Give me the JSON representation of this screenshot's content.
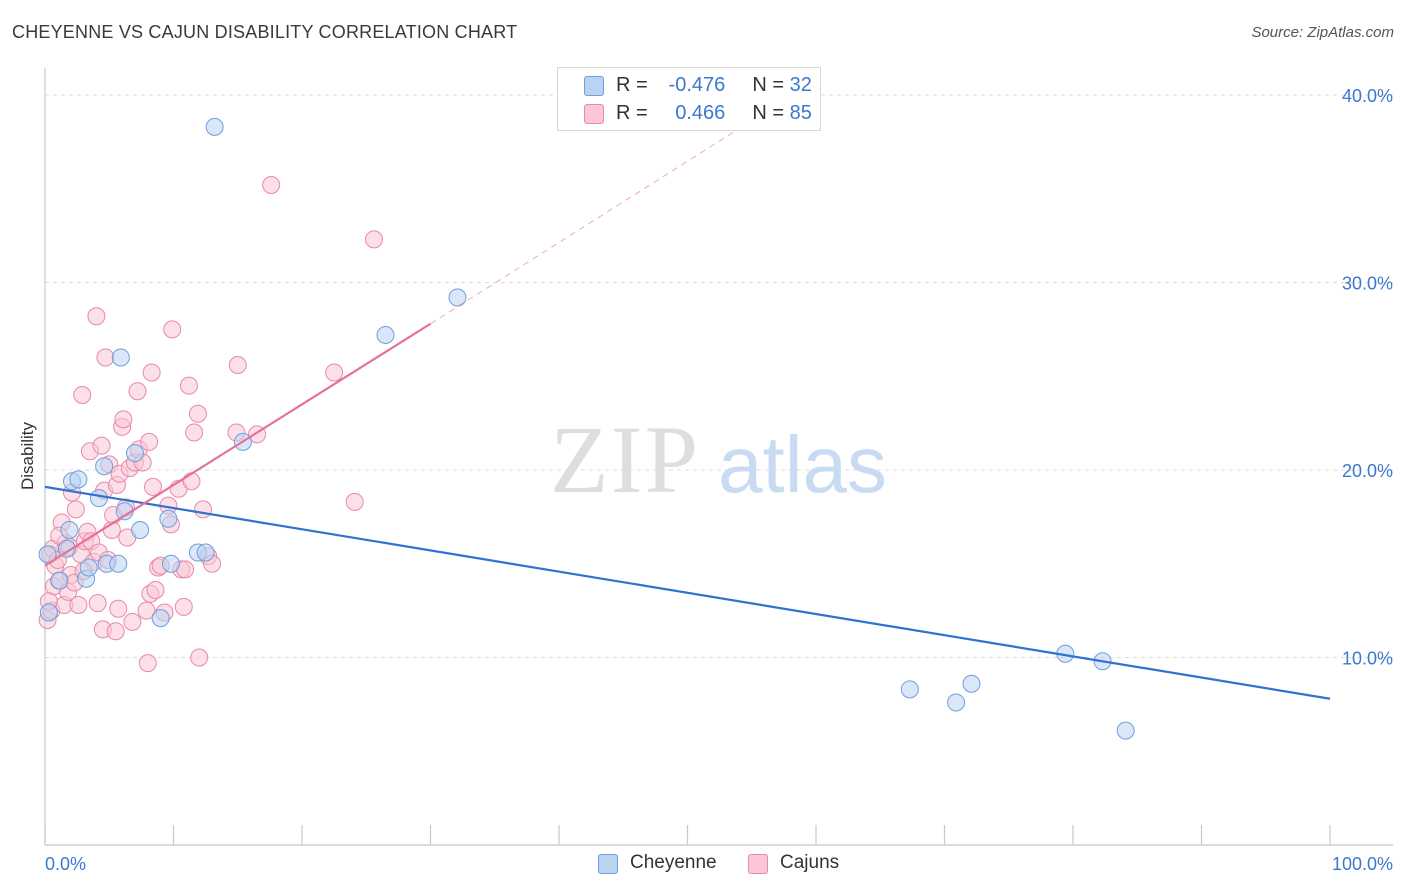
{
  "title": "CHEYENNE VS CAJUN DISABILITY CORRELATION CHART",
  "source": "Source: ZipAtlas.com",
  "watermark": {
    "zip": "ZIP",
    "atlas": "atlas"
  },
  "legend": {
    "rows": [
      {
        "r_label": "R =",
        "r_value": "-0.476",
        "n_label": "N =",
        "n_value": "32"
      },
      {
        "r_label": "R =",
        "r_value": "0.466",
        "n_label": "N =",
        "n_value": "85"
      }
    ]
  },
  "colors": {
    "cheyenne_fill": "#b9d3f3",
    "cheyenne_stroke": "#6f9fdc",
    "cheyenne_line": "#2f72d0",
    "cajun_fill": "#f9c7d6",
    "cajun_stroke": "#e889a8",
    "cajun_line": "#e5709a",
    "tick_label": "#3b78d0",
    "grid": "#dcdcdc"
  },
  "chart_data": {
    "type": "scatter",
    "title": "CHEYENNE VS CAJUN DISABILITY CORRELATION CHART",
    "xlabel": "",
    "ylabel": "Disability",
    "xlim": [
      0,
      100
    ],
    "ylim": [
      0,
      40.8
    ],
    "x_tick_labels": [
      "0.0%",
      "100.0%"
    ],
    "y_ticks": [
      10,
      20,
      30,
      40
    ],
    "y_tick_labels": [
      "10.0%",
      "20.0%",
      "30.0%",
      "40.0%"
    ],
    "legend_position": "bottom-center",
    "series": [
      {
        "name": "Cheyenne",
        "r": -0.476,
        "n": 32,
        "trend": {
          "x0": 0,
          "y0": 19.1,
          "x1": 100,
          "y1": 7.8
        },
        "points": [
          {
            "x": 0.2,
            "y": 15.5
          },
          {
            "x": 0.3,
            "y": 12.4
          },
          {
            "x": 1.1,
            "y": 14.1
          },
          {
            "x": 1.7,
            "y": 15.8
          },
          {
            "x": 1.9,
            "y": 16.8
          },
          {
            "x": 2.1,
            "y": 19.4
          },
          {
            "x": 2.6,
            "y": 19.5
          },
          {
            "x": 3.2,
            "y": 14.2
          },
          {
            "x": 3.4,
            "y": 14.8
          },
          {
            "x": 4.2,
            "y": 18.5
          },
          {
            "x": 4.6,
            "y": 20.2
          },
          {
            "x": 4.8,
            "y": 15.0
          },
          {
            "x": 5.7,
            "y": 15.0
          },
          {
            "x": 5.9,
            "y": 26.0
          },
          {
            "x": 6.2,
            "y": 17.8
          },
          {
            "x": 7.0,
            "y": 20.9
          },
          {
            "x": 7.4,
            "y": 16.8
          },
          {
            "x": 9.0,
            "y": 12.1
          },
          {
            "x": 9.6,
            "y": 17.4
          },
          {
            "x": 9.8,
            "y": 15.0
          },
          {
            "x": 11.9,
            "y": 15.6
          },
          {
            "x": 12.5,
            "y": 15.6
          },
          {
            "x": 13.2,
            "y": 38.3
          },
          {
            "x": 15.4,
            "y": 21.5
          },
          {
            "x": 26.5,
            "y": 27.2
          },
          {
            "x": 32.1,
            "y": 29.2
          },
          {
            "x": 67.3,
            "y": 8.3
          },
          {
            "x": 70.9,
            "y": 7.6
          },
          {
            "x": 72.1,
            "y": 8.6
          },
          {
            "x": 79.4,
            "y": 10.2
          },
          {
            "x": 82.3,
            "y": 9.8
          },
          {
            "x": 84.1,
            "y": 6.1
          }
        ]
      },
      {
        "name": "Cajuns",
        "r": 0.466,
        "n": 85,
        "trend": {
          "x0": 0,
          "y0": 14.9,
          "x1": 30,
          "y1": 27.8,
          "dash_to_x": 54,
          "dash_to_y": 38.2
        },
        "points": [
          {
            "x": 0.2,
            "y": 12.0
          },
          {
            "x": 0.4,
            "y": 15.5
          },
          {
            "x": 0.5,
            "y": 12.5
          },
          {
            "x": 0.6,
            "y": 15.8
          },
          {
            "x": 0.7,
            "y": 13.8
          },
          {
            "x": 0.8,
            "y": 14.9
          },
          {
            "x": 1.0,
            "y": 15.2
          },
          {
            "x": 1.2,
            "y": 14.1
          },
          {
            "x": 1.3,
            "y": 17.2
          },
          {
            "x": 1.5,
            "y": 12.8
          },
          {
            "x": 1.6,
            "y": 16.1
          },
          {
            "x": 1.8,
            "y": 13.5
          },
          {
            "x": 1.9,
            "y": 15.9
          },
          {
            "x": 2.0,
            "y": 14.4
          },
          {
            "x": 2.1,
            "y": 18.8
          },
          {
            "x": 2.3,
            "y": 14.0
          },
          {
            "x": 2.4,
            "y": 17.9
          },
          {
            "x": 2.6,
            "y": 12.8
          },
          {
            "x": 2.8,
            "y": 15.5
          },
          {
            "x": 2.9,
            "y": 24.0
          },
          {
            "x": 3.1,
            "y": 16.2
          },
          {
            "x": 3.3,
            "y": 16.7
          },
          {
            "x": 3.5,
            "y": 21.0
          },
          {
            "x": 3.6,
            "y": 16.2
          },
          {
            "x": 3.8,
            "y": 15.1
          },
          {
            "x": 4.0,
            "y": 28.2
          },
          {
            "x": 4.1,
            "y": 12.9
          },
          {
            "x": 4.2,
            "y": 15.6
          },
          {
            "x": 4.4,
            "y": 21.3
          },
          {
            "x": 4.5,
            "y": 11.5
          },
          {
            "x": 4.6,
            "y": 18.9
          },
          {
            "x": 4.7,
            "y": 26.0
          },
          {
            "x": 4.9,
            "y": 15.2
          },
          {
            "x": 5.0,
            "y": 20.3
          },
          {
            "x": 5.2,
            "y": 16.8
          },
          {
            "x": 5.3,
            "y": 17.6
          },
          {
            "x": 5.5,
            "y": 11.4
          },
          {
            "x": 5.6,
            "y": 19.2
          },
          {
            "x": 5.7,
            "y": 12.6
          },
          {
            "x": 5.8,
            "y": 19.8
          },
          {
            "x": 6.0,
            "y": 22.3
          },
          {
            "x": 6.1,
            "y": 22.7
          },
          {
            "x": 6.3,
            "y": 18.0
          },
          {
            "x": 6.6,
            "y": 20.1
          },
          {
            "x": 6.8,
            "y": 11.9
          },
          {
            "x": 7.0,
            "y": 20.4
          },
          {
            "x": 7.2,
            "y": 24.2
          },
          {
            "x": 7.3,
            "y": 21.1
          },
          {
            "x": 7.6,
            "y": 20.4
          },
          {
            "x": 7.9,
            "y": 12.5
          },
          {
            "x": 8.0,
            "y": 9.7
          },
          {
            "x": 8.1,
            "y": 21.5
          },
          {
            "x": 8.2,
            "y": 13.4
          },
          {
            "x": 8.3,
            "y": 25.2
          },
          {
            "x": 8.4,
            "y": 19.1
          },
          {
            "x": 8.6,
            "y": 13.6
          },
          {
            "x": 8.8,
            "y": 14.8
          },
          {
            "x": 9.0,
            "y": 14.9
          },
          {
            "x": 9.3,
            "y": 12.4
          },
          {
            "x": 9.6,
            "y": 18.1
          },
          {
            "x": 9.8,
            "y": 17.1
          },
          {
            "x": 9.9,
            "y": 27.5
          },
          {
            "x": 10.4,
            "y": 19.0
          },
          {
            "x": 10.6,
            "y": 14.7
          },
          {
            "x": 10.8,
            "y": 12.7
          },
          {
            "x": 10.9,
            "y": 14.7
          },
          {
            "x": 11.2,
            "y": 24.5
          },
          {
            "x": 11.4,
            "y": 19.4
          },
          {
            "x": 11.6,
            "y": 22.0
          },
          {
            "x": 11.9,
            "y": 23.0
          },
          {
            "x": 12.0,
            "y": 10.0
          },
          {
            "x": 12.3,
            "y": 17.9
          },
          {
            "x": 12.7,
            "y": 15.4
          },
          {
            "x": 13.0,
            "y": 15.0
          },
          {
            "x": 14.9,
            "y": 22.0
          },
          {
            "x": 15.0,
            "y": 25.6
          },
          {
            "x": 16.5,
            "y": 21.9
          },
          {
            "x": 17.6,
            "y": 35.2
          },
          {
            "x": 22.5,
            "y": 25.2
          },
          {
            "x": 24.1,
            "y": 18.3
          },
          {
            "x": 25.6,
            "y": 32.3
          },
          {
            "x": 0.3,
            "y": 13.0
          },
          {
            "x": 1.1,
            "y": 16.5
          },
          {
            "x": 3.0,
            "y": 14.6
          },
          {
            "x": 6.4,
            "y": 16.4
          }
        ]
      }
    ]
  }
}
